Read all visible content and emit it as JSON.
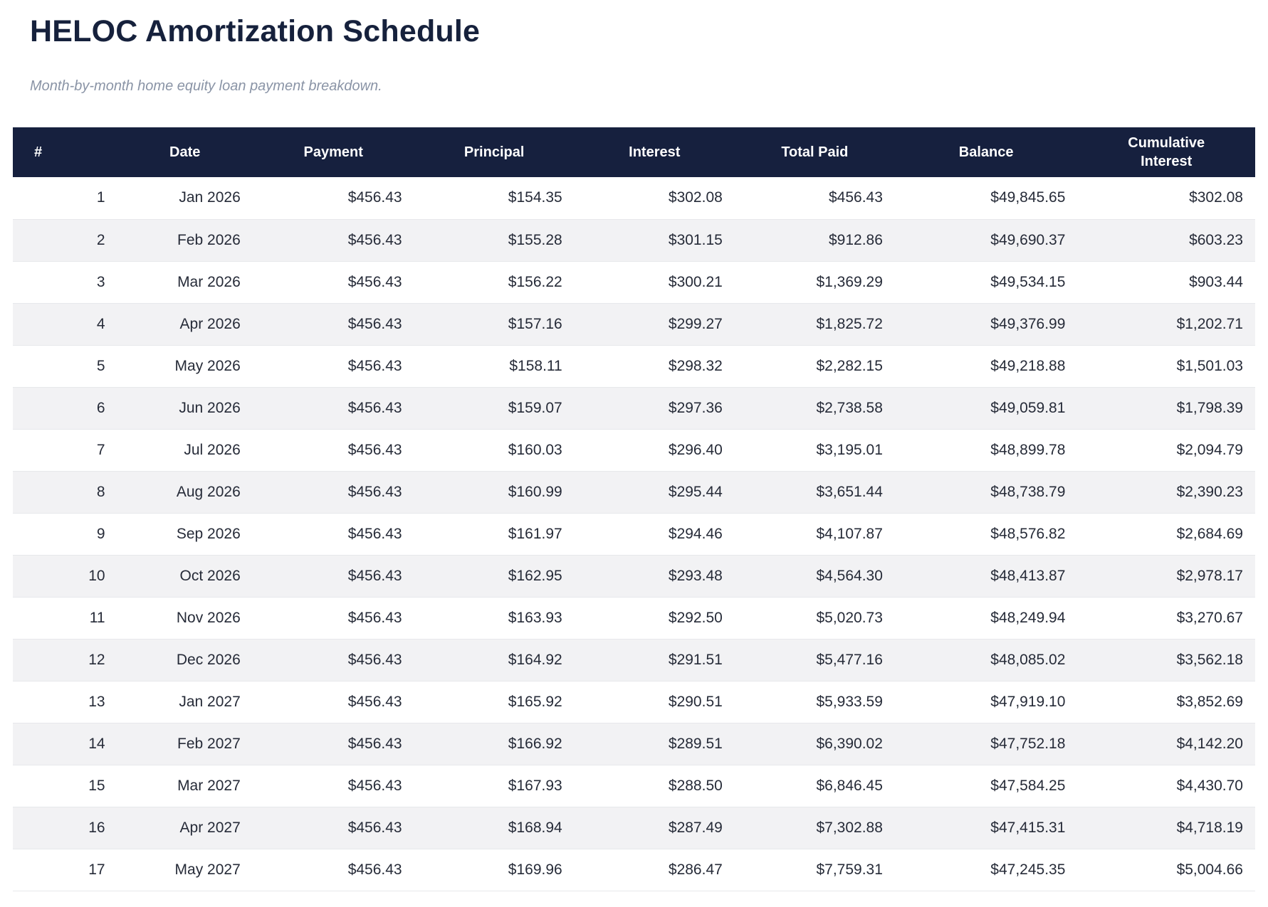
{
  "page": {
    "title": "HELOC Amortization Schedule",
    "subtitle": "Month-by-month home equity loan payment breakdown."
  },
  "colors": {
    "header_bg": "#16203E",
    "title_text": "#16213C",
    "subtitle_text": "#8A94A6",
    "body_text": "#262B38",
    "row_alt_bg": "#F2F2F4",
    "row_border": "#E7E8EB"
  },
  "chart_data": {
    "type": "table",
    "title": "HELOC Amortization Schedule",
    "subtitle": "Month-by-month home equity loan payment breakdown.",
    "columns": [
      "#",
      "Date",
      "Payment",
      "Principal",
      "Interest",
      "Total Paid",
      "Balance",
      "Cumulative Interest"
    ],
    "rows": [
      [
        "1",
        "Jan 2026",
        "$456.43",
        "$154.35",
        "$302.08",
        "$456.43",
        "$49,845.65",
        "$302.08"
      ],
      [
        "2",
        "Feb 2026",
        "$456.43",
        "$155.28",
        "$301.15",
        "$912.86",
        "$49,690.37",
        "$603.23"
      ],
      [
        "3",
        "Mar 2026",
        "$456.43",
        "$156.22",
        "$300.21",
        "$1,369.29",
        "$49,534.15",
        "$903.44"
      ],
      [
        "4",
        "Apr 2026",
        "$456.43",
        "$157.16",
        "$299.27",
        "$1,825.72",
        "$49,376.99",
        "$1,202.71"
      ],
      [
        "5",
        "May 2026",
        "$456.43",
        "$158.11",
        "$298.32",
        "$2,282.15",
        "$49,218.88",
        "$1,501.03"
      ],
      [
        "6",
        "Jun 2026",
        "$456.43",
        "$159.07",
        "$297.36",
        "$2,738.58",
        "$49,059.81",
        "$1,798.39"
      ],
      [
        "7",
        "Jul 2026",
        "$456.43",
        "$160.03",
        "$296.40",
        "$3,195.01",
        "$48,899.78",
        "$2,094.79"
      ],
      [
        "8",
        "Aug 2026",
        "$456.43",
        "$160.99",
        "$295.44",
        "$3,651.44",
        "$48,738.79",
        "$2,390.23"
      ],
      [
        "9",
        "Sep 2026",
        "$456.43",
        "$161.97",
        "$294.46",
        "$4,107.87",
        "$48,576.82",
        "$2,684.69"
      ],
      [
        "10",
        "Oct 2026",
        "$456.43",
        "$162.95",
        "$293.48",
        "$4,564.30",
        "$48,413.87",
        "$2,978.17"
      ],
      [
        "11",
        "Nov 2026",
        "$456.43",
        "$163.93",
        "$292.50",
        "$5,020.73",
        "$48,249.94",
        "$3,270.67"
      ],
      [
        "12",
        "Dec 2026",
        "$456.43",
        "$164.92",
        "$291.51",
        "$5,477.16",
        "$48,085.02",
        "$3,562.18"
      ],
      [
        "13",
        "Jan 2027",
        "$456.43",
        "$165.92",
        "$290.51",
        "$5,933.59",
        "$47,919.10",
        "$3,852.69"
      ],
      [
        "14",
        "Feb 2027",
        "$456.43",
        "$166.92",
        "$289.51",
        "$6,390.02",
        "$47,752.18",
        "$4,142.20"
      ],
      [
        "15",
        "Mar 2027",
        "$456.43",
        "$167.93",
        "$288.50",
        "$6,846.45",
        "$47,584.25",
        "$4,430.70"
      ],
      [
        "16",
        "Apr 2027",
        "$456.43",
        "$168.94",
        "$287.49",
        "$7,302.88",
        "$47,415.31",
        "$4,718.19"
      ],
      [
        "17",
        "May 2027",
        "$456.43",
        "$169.96",
        "$286.47",
        "$7,759.31",
        "$47,245.35",
        "$5,004.66"
      ]
    ],
    "column_widths_pct": [
      8.4,
      10.9,
      13.0,
      12.9,
      12.9,
      12.9,
      14.7,
      14.3
    ],
    "layout": {
      "header_text_align": "center",
      "body_text_align": "right",
      "zebra_striping": "even-rows-gray",
      "grid": "horizontal-row-borders"
    }
  }
}
